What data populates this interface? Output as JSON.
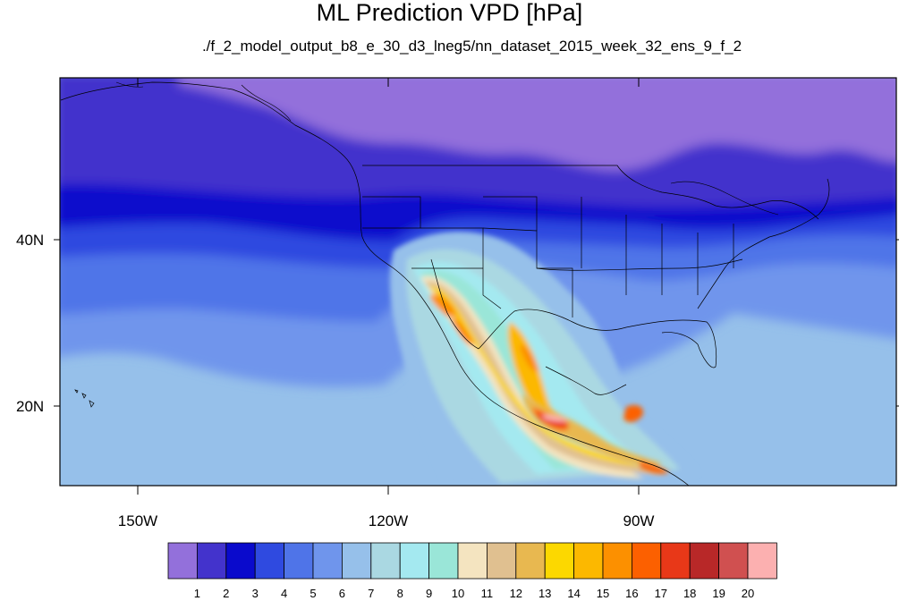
{
  "title": "ML Prediction VPD [hPa]",
  "subtitle": "./f_2_model_output_b8_e_30_d3_lneg5/nn_dataset_2015_week_32_ens_9_f_2",
  "lon_labels": [
    {
      "text": "150W",
      "lon": -150
    },
    {
      "text": "120W",
      "lon": -120
    },
    {
      "text": "90W",
      "lon": -90
    }
  ],
  "lat_labels": [
    {
      "text": "40N",
      "lat": 40
    },
    {
      "text": "20N",
      "lat": 20
    }
  ],
  "colorbar": {
    "levels": [
      "1",
      "2",
      "3",
      "4",
      "5",
      "6",
      "7",
      "8",
      "9",
      "10",
      "11",
      "12",
      "13",
      "14",
      "15",
      "16",
      "17",
      "18",
      "19",
      "20"
    ],
    "colors": [
      "#9370db",
      "#4333cc",
      "#0a0acc",
      "#2f4ae0",
      "#4f74e8",
      "#6f95ec",
      "#96c0ea",
      "#aad8e2",
      "#a4e9f0",
      "#9ae6d8",
      "#f4e4c0",
      "#e0c090",
      "#e8b850",
      "#fcd800",
      "#fcb800",
      "#fc9000",
      "#fc6000",
      "#e83818",
      "#b82828",
      "#d05050",
      "#fcb0b0"
    ]
  },
  "map": {
    "extent": {
      "lon_min": -160,
      "lon_max": -62,
      "lat_min": 10,
      "lat_max": 59
    },
    "field": "VPD",
    "units": "hPa"
  }
}
